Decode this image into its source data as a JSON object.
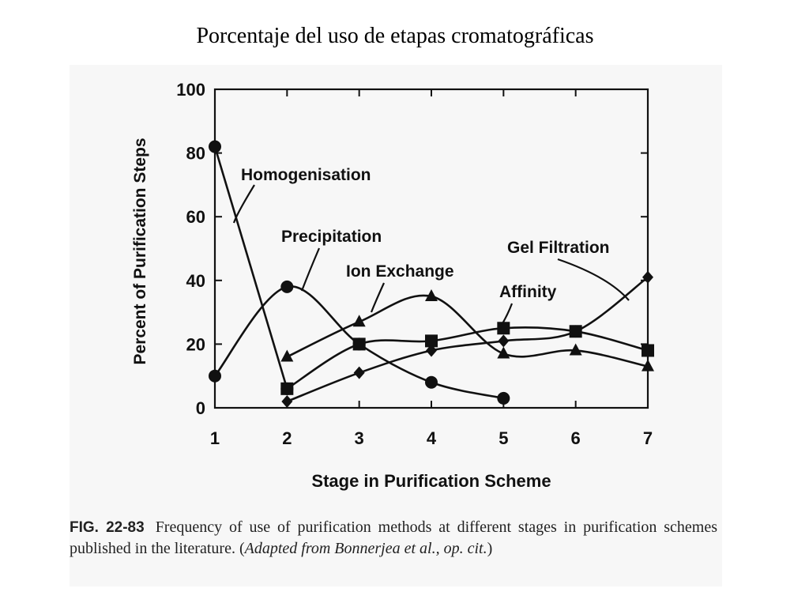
{
  "slide": {
    "title": "Porcentaje del uso de etapas cromatográficas"
  },
  "caption": {
    "figure_number": "FIG. 22-83",
    "text": "Frequency of use of purification methods at different stages in purification schemes published in the literature. (",
    "italic_text": "Adapted from Bonnerjea et al., op. cit.",
    "closing": ")"
  },
  "chart_data": {
    "type": "line",
    "title": "",
    "xlabel": "Stage in Purification Scheme",
    "ylabel": "Percent of Purification Steps",
    "xlim": [
      1,
      7
    ],
    "ylim": [
      0,
      100
    ],
    "x_ticks": [
      1,
      2,
      3,
      4,
      5,
      6,
      7
    ],
    "y_ticks": [
      0,
      20,
      40,
      60,
      80,
      100
    ],
    "grid": false,
    "series": [
      {
        "name": "Homogenisation",
        "marker": "circle",
        "x": [
          1,
          2
        ],
        "values": [
          82,
          6
        ]
      },
      {
        "name": "Precipitation",
        "marker": "circle",
        "x": [
          1,
          2,
          3,
          4,
          5
        ],
        "values": [
          10,
          38,
          20,
          8,
          3
        ]
      },
      {
        "name": "Ion Exchange",
        "marker": "triangle",
        "x": [
          2,
          3,
          4,
          5,
          6,
          7
        ],
        "values": [
          16,
          27,
          35,
          17,
          18,
          13
        ]
      },
      {
        "name": "Affinity",
        "marker": "square",
        "x": [
          2,
          3,
          4,
          5,
          6,
          7
        ],
        "values": [
          6,
          20,
          21,
          25,
          24,
          18
        ]
      },
      {
        "name": "Gel Filtration",
        "marker": "diamond",
        "x": [
          2,
          3,
          4,
          5,
          6,
          7
        ],
        "values": [
          2,
          11,
          18,
          21,
          24,
          41
        ]
      }
    ]
  }
}
